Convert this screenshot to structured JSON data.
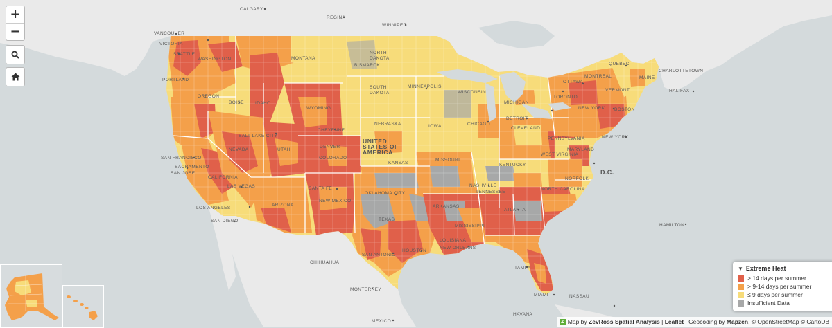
{
  "colors": {
    "water": "#d4dadc",
    "land": "#eaeaea",
    "high": "#e0604a",
    "mid": "#f4a04a",
    "low": "#f7dc7a",
    "insufficient": "#a7a8a8",
    "border": "#ffffff"
  },
  "controls": {
    "zoom_in": "+",
    "zoom_out": "−",
    "search_icon": "search-icon",
    "home_icon": "home-icon"
  },
  "labels": {
    "calgary": "CALGARY",
    "regina": "REGINA",
    "winnipeg": "WINNIPEG",
    "vancouver": "VANCOUVER",
    "victoria": "VICTORIA",
    "seattle": "SEATTLE",
    "washington": "WASHINGTON",
    "montana": "MONTANA",
    "north_dakota": "NORTH DAKOTA",
    "bismarck": "BISMARCK",
    "portland": "PORTLAND",
    "oregon": "OREGON",
    "idaho": "IDAHO",
    "boise": "BOISE",
    "wyoming": "WYOMING",
    "south_dakota": "SOUTH DAKOTA",
    "minneapolis": "MINNEAPOLIS",
    "wisconsin": "WISCONSIN",
    "michigan": "MICHIGAN",
    "toronto": "TORONTO",
    "ottawa": "OTTAWA",
    "montreal": "MONTREAL",
    "quebec": "QUEBEC",
    "charlottetown": "CHARLOTTETOWN",
    "halifax": "HALIFAX",
    "vermont": "VERMONT",
    "maine": "MAINE",
    "new_york_state": "NEW YORK",
    "boston": "BOSTON",
    "nevada": "NEVADA",
    "utah": "UTAH",
    "salt_lake_city": "SALT LAKE CITY",
    "cheyenne": "CHEYENNE",
    "denver": "DENVER",
    "colorado": "COLORADO",
    "nebraska": "NEBRASKA",
    "iowa": "IOWA",
    "chicago": "CHICAGO",
    "detroit": "DETROIT",
    "cleveland": "CLEVELAND",
    "pennsylvania": "PENNSYLVANIA",
    "new_york": "NEW YORK",
    "san_francisco": "SAN FRANCISCO",
    "sacramento": "SACRAMENTO",
    "san_jose": "SAN JOSE",
    "california": "CALIFORNIA",
    "las_vegas": "LAS VEGAS",
    "united_states": "UNITED STATES OF AMERICA",
    "kansas": "KANSAS",
    "missouri": "MISSOURI",
    "kentucky": "KENTUCKY",
    "west_virginia": "WEST VIRGINIA",
    "maryland": "MARYLAND",
    "dc": "D.C.",
    "norfolk": "NORFOLK",
    "los_angeles": "LOS ANGELES",
    "san_diego": "SAN DIEGO",
    "arizona": "ARIZONA",
    "santa_fe": "SANTA FE",
    "new_mexico": "NEW MEXICO",
    "oklahoma_city": "OKLAHOMA CITY",
    "nashville": "NASHVILLE",
    "tennessee": "TENNESSEE",
    "north_carolina": "NORTH CAROLINA",
    "arkansas": "ARKANSAS",
    "atlanta": "ATLANTA",
    "texas": "TEXAS",
    "mississippi": "MISSISSIPPI",
    "louisiana": "LOUISIANA",
    "houston": "HOUSTON",
    "new_orleans": "NEW ORLEANS",
    "san_antonio": "SAN ANTONIO",
    "tampa": "TAMPA",
    "miami": "MIAMI",
    "hamilton": "HAMILTON",
    "chihuahua": "CHIHUAHUA",
    "monterrey": "MONTERREY",
    "mexico": "MEXICO",
    "havana": "HAVANA",
    "nassau": "NASSAU"
  },
  "legend": {
    "title": "Extreme Heat",
    "items": [
      {
        "label": "> 14 days per summer",
        "color": "#e0604a"
      },
      {
        "label": "> 9-14 days per summer",
        "color": "#f4a04a"
      },
      {
        "label": "≤ 9 days per summer",
        "color": "#f7dc7a"
      },
      {
        "label": "Insufficient Data",
        "color": "#a7a8a8"
      }
    ]
  },
  "attribution": {
    "map_by": "Map by",
    "zevross": "ZevRoss Spatial Analysis",
    "sep1": "|",
    "leaflet": "Leaflet",
    "sep2": "|",
    "geocoding": "Geocoding by",
    "mapzen": "Mapzen",
    "rest": ", © OpenStreetMap © CartoDB"
  }
}
